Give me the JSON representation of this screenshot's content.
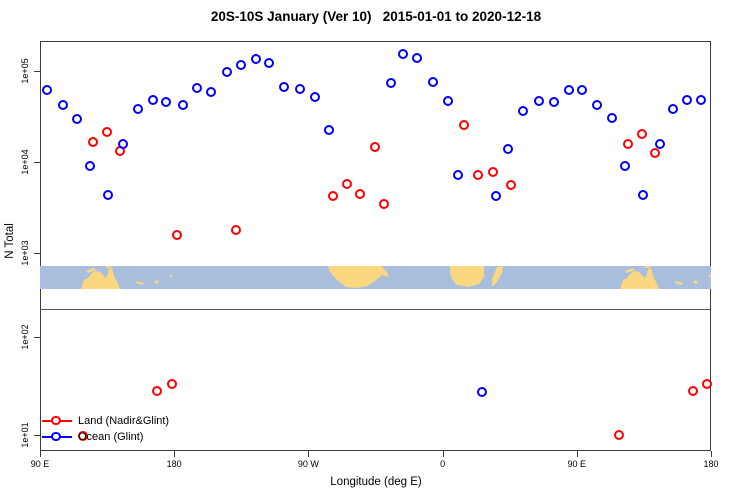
{
  "title": "20S-10S January (Ver 10)   2015-01-01 to 2020-12-18",
  "axes": {
    "x_label": "Longitude (deg E)",
    "y_label": "N Total",
    "x_ticks": [
      {
        "label": "90 E",
        "lon": 90
      },
      {
        "label": "180",
        "lon": 180
      },
      {
        "label": "90 W",
        "lon": 270
      },
      {
        "label": "0",
        "lon": 360
      },
      {
        "label": "90 E",
        "lon": 450
      },
      {
        "label": "180",
        "lon": 540
      }
    ],
    "y_ticks": [
      {
        "label": "1e+05",
        "value": 100000
      },
      {
        "label": "1e+04",
        "value": 10000
      },
      {
        "label": "1e+03",
        "value": 1000
      },
      {
        "label": "1e+02",
        "value": 100
      },
      {
        "label": "1e+01",
        "value": 10
      }
    ]
  },
  "legend": {
    "items": [
      {
        "label": "Land (Nadir&Glint)",
        "color": "#ff0000"
      },
      {
        "label": "Ocean (Glint)",
        "color": "#0000ff"
      }
    ]
  },
  "colors": {
    "land_series": "#ff0000",
    "ocean_series": "#0000ff",
    "map_ocean": "#a9bedd",
    "map_land": "#fbd87f",
    "axis": "#3c3c3c"
  },
  "chart_data": {
    "type": "scatter",
    "title": "20S-10S January (Ver 10)   2015-01-01 to 2020-12-18",
    "xlabel": "Longitude (deg E)",
    "ylabel": "N Total",
    "x_axis": {
      "ticks": [
        90,
        180,
        270,
        360,
        450,
        540
      ],
      "tick_labels": [
        "90 E",
        "180",
        "90 W",
        "0",
        "90 E",
        "180"
      ],
      "range": [
        90,
        540
      ],
      "note": "longitude increases eastward and wraps past 180"
    },
    "y_axis": {
      "scale": "log",
      "tick_labels": [
        "1e+05",
        "1e+04",
        "1e+03",
        "1e+02",
        "1e+01"
      ],
      "upper_panel_range": [
        240,
        320000
      ],
      "lower_panel_range": [
        8,
        190
      ],
      "note": "axis interrupted by coastline map strip between 1e+03 and 1e+02"
    },
    "series": [
      {
        "name": "Land (Nadir&Glint)",
        "color": "#ff0000",
        "points": [
          [
            126,
            16400
          ],
          [
            135,
            20700
          ],
          [
            144,
            12900
          ],
          [
            182,
            1550
          ],
          [
            222,
            1750
          ],
          [
            287,
            4150
          ],
          [
            296,
            5600
          ],
          [
            305,
            4400
          ],
          [
            315,
            14300
          ],
          [
            321,
            3400
          ],
          [
            375,
            25000
          ],
          [
            384,
            7050
          ],
          [
            394,
            7550
          ],
          [
            406,
            5450
          ],
          [
            485,
            15600
          ],
          [
            494,
            19700
          ],
          [
            503,
            12200
          ],
          [
            169,
            28
          ],
          [
            179,
            33
          ],
          [
            119,
            9.6
          ],
          [
            479,
            9.8
          ],
          [
            528,
            28
          ],
          [
            538,
            33
          ]
        ]
      },
      {
        "name": "Ocean (Glint)",
        "color": "#0000ff",
        "points": [
          [
            95,
            59800
          ],
          [
            106,
            41000
          ],
          [
            115,
            29300
          ],
          [
            124,
            8850
          ],
          [
            136,
            4260
          ],
          [
            146,
            15300
          ],
          [
            156,
            37100
          ],
          [
            166,
            46500
          ],
          [
            175,
            44900
          ],
          [
            186,
            41800
          ],
          [
            196,
            63500
          ],
          [
            205,
            57400
          ],
          [
            216,
            94400
          ],
          [
            225,
            113500
          ],
          [
            235,
            133300
          ],
          [
            244,
            120500
          ],
          [
            254,
            64600
          ],
          [
            265,
            62500
          ],
          [
            275,
            51000
          ],
          [
            284,
            22200
          ],
          [
            326,
            72700
          ],
          [
            334,
            151300
          ],
          [
            343,
            134300
          ],
          [
            354,
            73300
          ],
          [
            364,
            45400
          ],
          [
            371,
            7130
          ],
          [
            396,
            4150
          ],
          [
            404,
            13800
          ],
          [
            414,
            35900
          ],
          [
            425,
            45400
          ],
          [
            435,
            45100
          ],
          [
            445,
            59800
          ],
          [
            454,
            60400
          ],
          [
            464,
            41800
          ],
          [
            474,
            29800
          ],
          [
            483,
            8850
          ],
          [
            495,
            4260
          ],
          [
            506,
            15400
          ],
          [
            515,
            37700
          ],
          [
            524,
            47400
          ],
          [
            534,
            47400
          ],
          [
            387,
            27
          ]
        ]
      }
    ],
    "map_strip": {
      "description": "coastline band for latitudes 20S-10S aligned to longitude axis",
      "ocean_color": "#a9bedd",
      "land_color": "#fbd87f",
      "land_polygons": [
        {
          "name": "australia-north",
          "pts": [
            [
              41,
              23
            ],
            [
              44,
              14
            ],
            [
              48,
              12
            ],
            [
              51,
              8
            ],
            [
              55,
              5
            ],
            [
              60,
              6
            ],
            [
              63,
              9
            ],
            [
              66,
              12
            ],
            [
              68,
              8
            ],
            [
              69,
              3
            ],
            [
              72,
              2
            ],
            [
              74,
              10
            ],
            [
              77,
              16
            ],
            [
              80,
              23
            ]
          ]
        },
        {
          "name": "timor",
          "pts": [
            [
              46,
              5
            ],
            [
              54,
              2
            ],
            [
              56,
              4
            ],
            [
              48,
              7
            ]
          ]
        },
        {
          "name": "new-guinea-fragment",
          "pts": [
            [
              66,
              0
            ],
            [
              72,
              0
            ],
            [
              70,
              2
            ],
            [
              66,
              2
            ]
          ]
        },
        {
          "name": "new-caledonia",
          "pts": [
            [
              97,
              15
            ],
            [
              104,
              17
            ],
            [
              102,
              19
            ],
            [
              96,
              17
            ]
          ]
        },
        {
          "name": "fiji",
          "pts": [
            [
              116,
              14
            ],
            [
              119,
              16
            ],
            [
              117,
              18
            ],
            [
              114,
              16
            ]
          ]
        },
        {
          "name": "island-speck",
          "pts": [
            [
              130,
              8
            ],
            [
              133,
              10
            ],
            [
              130,
              11
            ]
          ]
        },
        {
          "name": "south-america",
          "pts": [
            [
              288,
              0
            ],
            [
              341,
              0
            ],
            [
              347,
              6
            ],
            [
              349,
              11
            ],
            [
              342,
              9
            ],
            [
              335,
              15
            ],
            [
              327,
              20
            ],
            [
              317,
              22
            ],
            [
              306,
              21
            ],
            [
              297,
              14
            ],
            [
              290,
              6
            ]
          ]
        },
        {
          "name": "africa-south",
          "pts": [
            [
              410,
              0
            ],
            [
              444,
              0
            ],
            [
              444,
              11
            ],
            [
              439,
              18
            ],
            [
              428,
              21
            ],
            [
              417,
              19
            ],
            [
              412,
              13
            ],
            [
              410,
              7
            ]
          ]
        },
        {
          "name": "madagascar",
          "pts": [
            [
              457,
              1
            ],
            [
              463,
              0
            ],
            [
              462,
              7
            ],
            [
              457,
              16
            ],
            [
              452,
              21
            ],
            [
              452,
              13
            ],
            [
              455,
              6
            ]
          ]
        },
        {
          "name": "australia-north-repeat",
          "pts": [
            [
              580,
              23
            ],
            [
              583,
              14
            ],
            [
              587,
              12
            ],
            [
              590,
              8
            ],
            [
              594,
              5
            ],
            [
              599,
              6
            ],
            [
              602,
              9
            ],
            [
              605,
              12
            ],
            [
              607,
              8
            ],
            [
              608,
              3
            ],
            [
              611,
              2
            ],
            [
              613,
              10
            ],
            [
              616,
              16
            ],
            [
              619,
              23
            ]
          ]
        },
        {
          "name": "timor-repeat",
          "pts": [
            [
              585,
              5
            ],
            [
              593,
              2
            ],
            [
              595,
              4
            ],
            [
              587,
              7
            ]
          ]
        },
        {
          "name": "new-guinea-fragment-repeat",
          "pts": [
            [
              605,
              0
            ],
            [
              611,
              0
            ],
            [
              609,
              2
            ],
            [
              605,
              2
            ]
          ]
        },
        {
          "name": "new-caledonia-repeat",
          "pts": [
            [
              636,
              15
            ],
            [
              643,
              17
            ],
            [
              641,
              19
            ],
            [
              635,
              17
            ]
          ]
        },
        {
          "name": "fiji-repeat",
          "pts": [
            [
              655,
              14
            ],
            [
              658,
              16
            ],
            [
              656,
              18
            ],
            [
              653,
              16
            ]
          ]
        },
        {
          "name": "island-speck-repeat",
          "pts": [
            [
              669,
              8
            ],
            [
              672,
              10
            ],
            [
              669,
              11
            ]
          ]
        }
      ]
    }
  }
}
